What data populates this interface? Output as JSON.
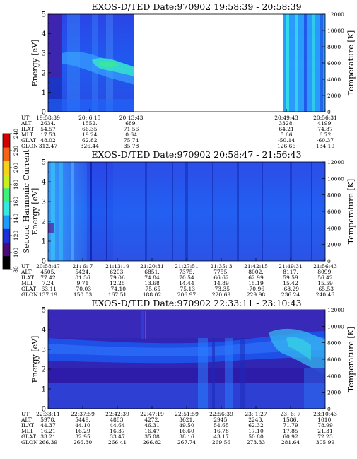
{
  "colorbar": {
    "label": "Second Harmonic Current",
    "ticks": [
      "80",
      "100",
      "120",
      "140",
      "160",
      "180",
      "200",
      "220",
      "240"
    ],
    "min": 80,
    "max": 240,
    "colors": [
      "#000000",
      "#4b0a7a",
      "#1c2fd8",
      "#1e9bff",
      "#35e8e0",
      "#3ff07a",
      "#c8f020",
      "#f7d21a",
      "#f56414",
      "#d40000"
    ]
  },
  "chart_data": [
    {
      "type": "heatmap",
      "title": "EXOS-D/TED   Date:970902   19:58:39 - 20:58:39",
      "ylabel": "Energy [eV]",
      "y2label": "Temperature [K]",
      "ylim": [
        0,
        5
      ],
      "y2lim": [
        0,
        12000
      ],
      "yticks": [
        "0",
        "1",
        "2",
        "3",
        "4",
        "5"
      ],
      "y2ticks": [
        "0",
        "2000",
        "4000",
        "6000",
        "8000",
        "10000",
        "12000"
      ],
      "data_gap": [
        0.27,
        0.87
      ],
      "table": {
        "row_labels": [
          "UT",
          "ALT",
          "ILAT",
          "MLT",
          "GLAT",
          "GLON"
        ],
        "columns": [
          {
            "pos": 0.0,
            "values": [
              "19:58:39",
              "2634.",
              "54.57",
              "17.53",
              "48.02",
              "312.47"
            ]
          },
          {
            "pos": 0.15,
            "values": [
              "20: 6:15",
              "1552.",
              "66.35",
              "19.24",
              "62.82",
              "326.44"
            ]
          },
          {
            "pos": 0.3,
            "values": [
              "20:13:43",
              "689.",
              "71.56",
              "0.64",
              "75.74",
              "35.78"
            ]
          },
          {
            "pos": 0.86,
            "values": [
              "20:49:43",
              "3328.",
              "64.21",
              "5.66",
              "-50.14",
              "126.66"
            ]
          },
          {
            "pos": 1.0,
            "values": [
              "20:56:31",
              "4199.",
              "74.87",
              "6.72",
              "-60.37",
              "134.10"
            ]
          }
        ]
      }
    },
    {
      "type": "heatmap",
      "title": "EXOS-D/TED   Date:970902   20:58:47 - 21:56:43",
      "ylabel": "Energy [eV]",
      "y2label": "Temperature [K]",
      "ylim": [
        0,
        5
      ],
      "y2lim": [
        0,
        12000
      ],
      "yticks": [
        "0",
        "1",
        "2",
        "3",
        "4",
        "5"
      ],
      "y2ticks": [
        "0",
        "2000",
        "4000",
        "6000",
        "8000",
        "10000",
        "12000"
      ],
      "table": {
        "row_labels": [
          "UT",
          "ALT",
          "ILAT",
          "MLT",
          "GLAT",
          "GLON"
        ],
        "columns": [
          {
            "pos": 0.0,
            "values": [
              "20:58:47",
              "4505.",
              "77.42",
              "7.24",
              "-63.11",
              "137.19"
            ]
          },
          {
            "pos": 0.125,
            "values": [
              "21: 6: 7",
              "5424.",
              "81.36",
              "9.71",
              "-70.03",
              "150.03"
            ]
          },
          {
            "pos": 0.25,
            "values": [
              "21:13:19",
              "6203.",
              "79.06",
              "12.25",
              "-74.10",
              "167.51"
            ]
          },
          {
            "pos": 0.375,
            "values": [
              "21:20:31",
              "6851.",
              "74.84",
              "13.68",
              "-75.65",
              "188.02"
            ]
          },
          {
            "pos": 0.5,
            "values": [
              "21:27:51",
              "7375.",
              "70.54",
              "14.44",
              "-75.13",
              "206.97"
            ]
          },
          {
            "pos": 0.625,
            "values": [
              "21:35: 3",
              "7755.",
              "66.62",
              "14.89",
              "-73.35",
              "220.69"
            ]
          },
          {
            "pos": 0.75,
            "values": [
              "21:42:15",
              "8002.",
              "62.99",
              "15.19",
              "-70.96",
              "229.98"
            ]
          },
          {
            "pos": 0.875,
            "values": [
              "21:49:31",
              "8117.",
              "59.59",
              "15.42",
              "-68.29",
              "236.24"
            ]
          },
          {
            "pos": 1.0,
            "values": [
              "21:56:43",
              "8099.",
              "56.42",
              "15.59",
              "-65.53",
              "240.46"
            ]
          }
        ]
      }
    },
    {
      "type": "heatmap",
      "title": "EXOS-D/TED   Date:970902   22:33:11 - 23:10:43",
      "ylabel": "Energy [eV]",
      "y2label": "Temperature [K]",
      "ylim": [
        0,
        5
      ],
      "y2lim": [
        0,
        12000
      ],
      "yticks": [
        "0",
        "1",
        "2",
        "3",
        "4",
        "5"
      ],
      "y2ticks": [
        "0",
        "2000",
        "4000",
        "6000",
        "8000",
        "10000",
        "12000"
      ],
      "table": {
        "row_labels": [
          "UT",
          "ALT",
          "ILAT",
          "MLT",
          "GLAT",
          "GLON"
        ],
        "columns": [
          {
            "pos": 0.0,
            "values": [
              "22:33:11",
              "5978.",
              "44.37",
              "16.21",
              "33.21",
              "266.39"
            ]
          },
          {
            "pos": 0.125,
            "values": [
              "22:37:59",
              "5449.",
              "44.10",
              "16.29",
              "32.95",
              "266.30"
            ]
          },
          {
            "pos": 0.25,
            "values": [
              "22:42:39",
              "4883.",
              "44.64",
              "16.37",
              "33.47",
              "266.41"
            ]
          },
          {
            "pos": 0.375,
            "values": [
              "22:47:19",
              "4272.",
              "46.31",
              "16.47",
              "35.08",
              "266.82"
            ]
          },
          {
            "pos": 0.5,
            "values": [
              "22:51:59",
              "3621.",
              "49.50",
              "16.60",
              "38.16",
              "267.74"
            ]
          },
          {
            "pos": 0.625,
            "values": [
              "22:56:39",
              "2945.",
              "54.65",
              "16.78",
              "43.17",
              "269.56"
            ]
          },
          {
            "pos": 0.75,
            "values": [
              "23: 1:27",
              "2243.",
              "62.32",
              "17.10",
              "50.80",
              "273.33"
            ]
          },
          {
            "pos": 0.875,
            "values": [
              "23: 6: 7",
              "1586.",
              "71.79",
              "17.85",
              "60.92",
              "281.64"
            ]
          },
          {
            "pos": 1.0,
            "values": [
              "23:10:43",
              "1010.",
              "78.99",
              "21.31",
              "72.23",
              "305.99"
            ]
          }
        ]
      }
    }
  ]
}
